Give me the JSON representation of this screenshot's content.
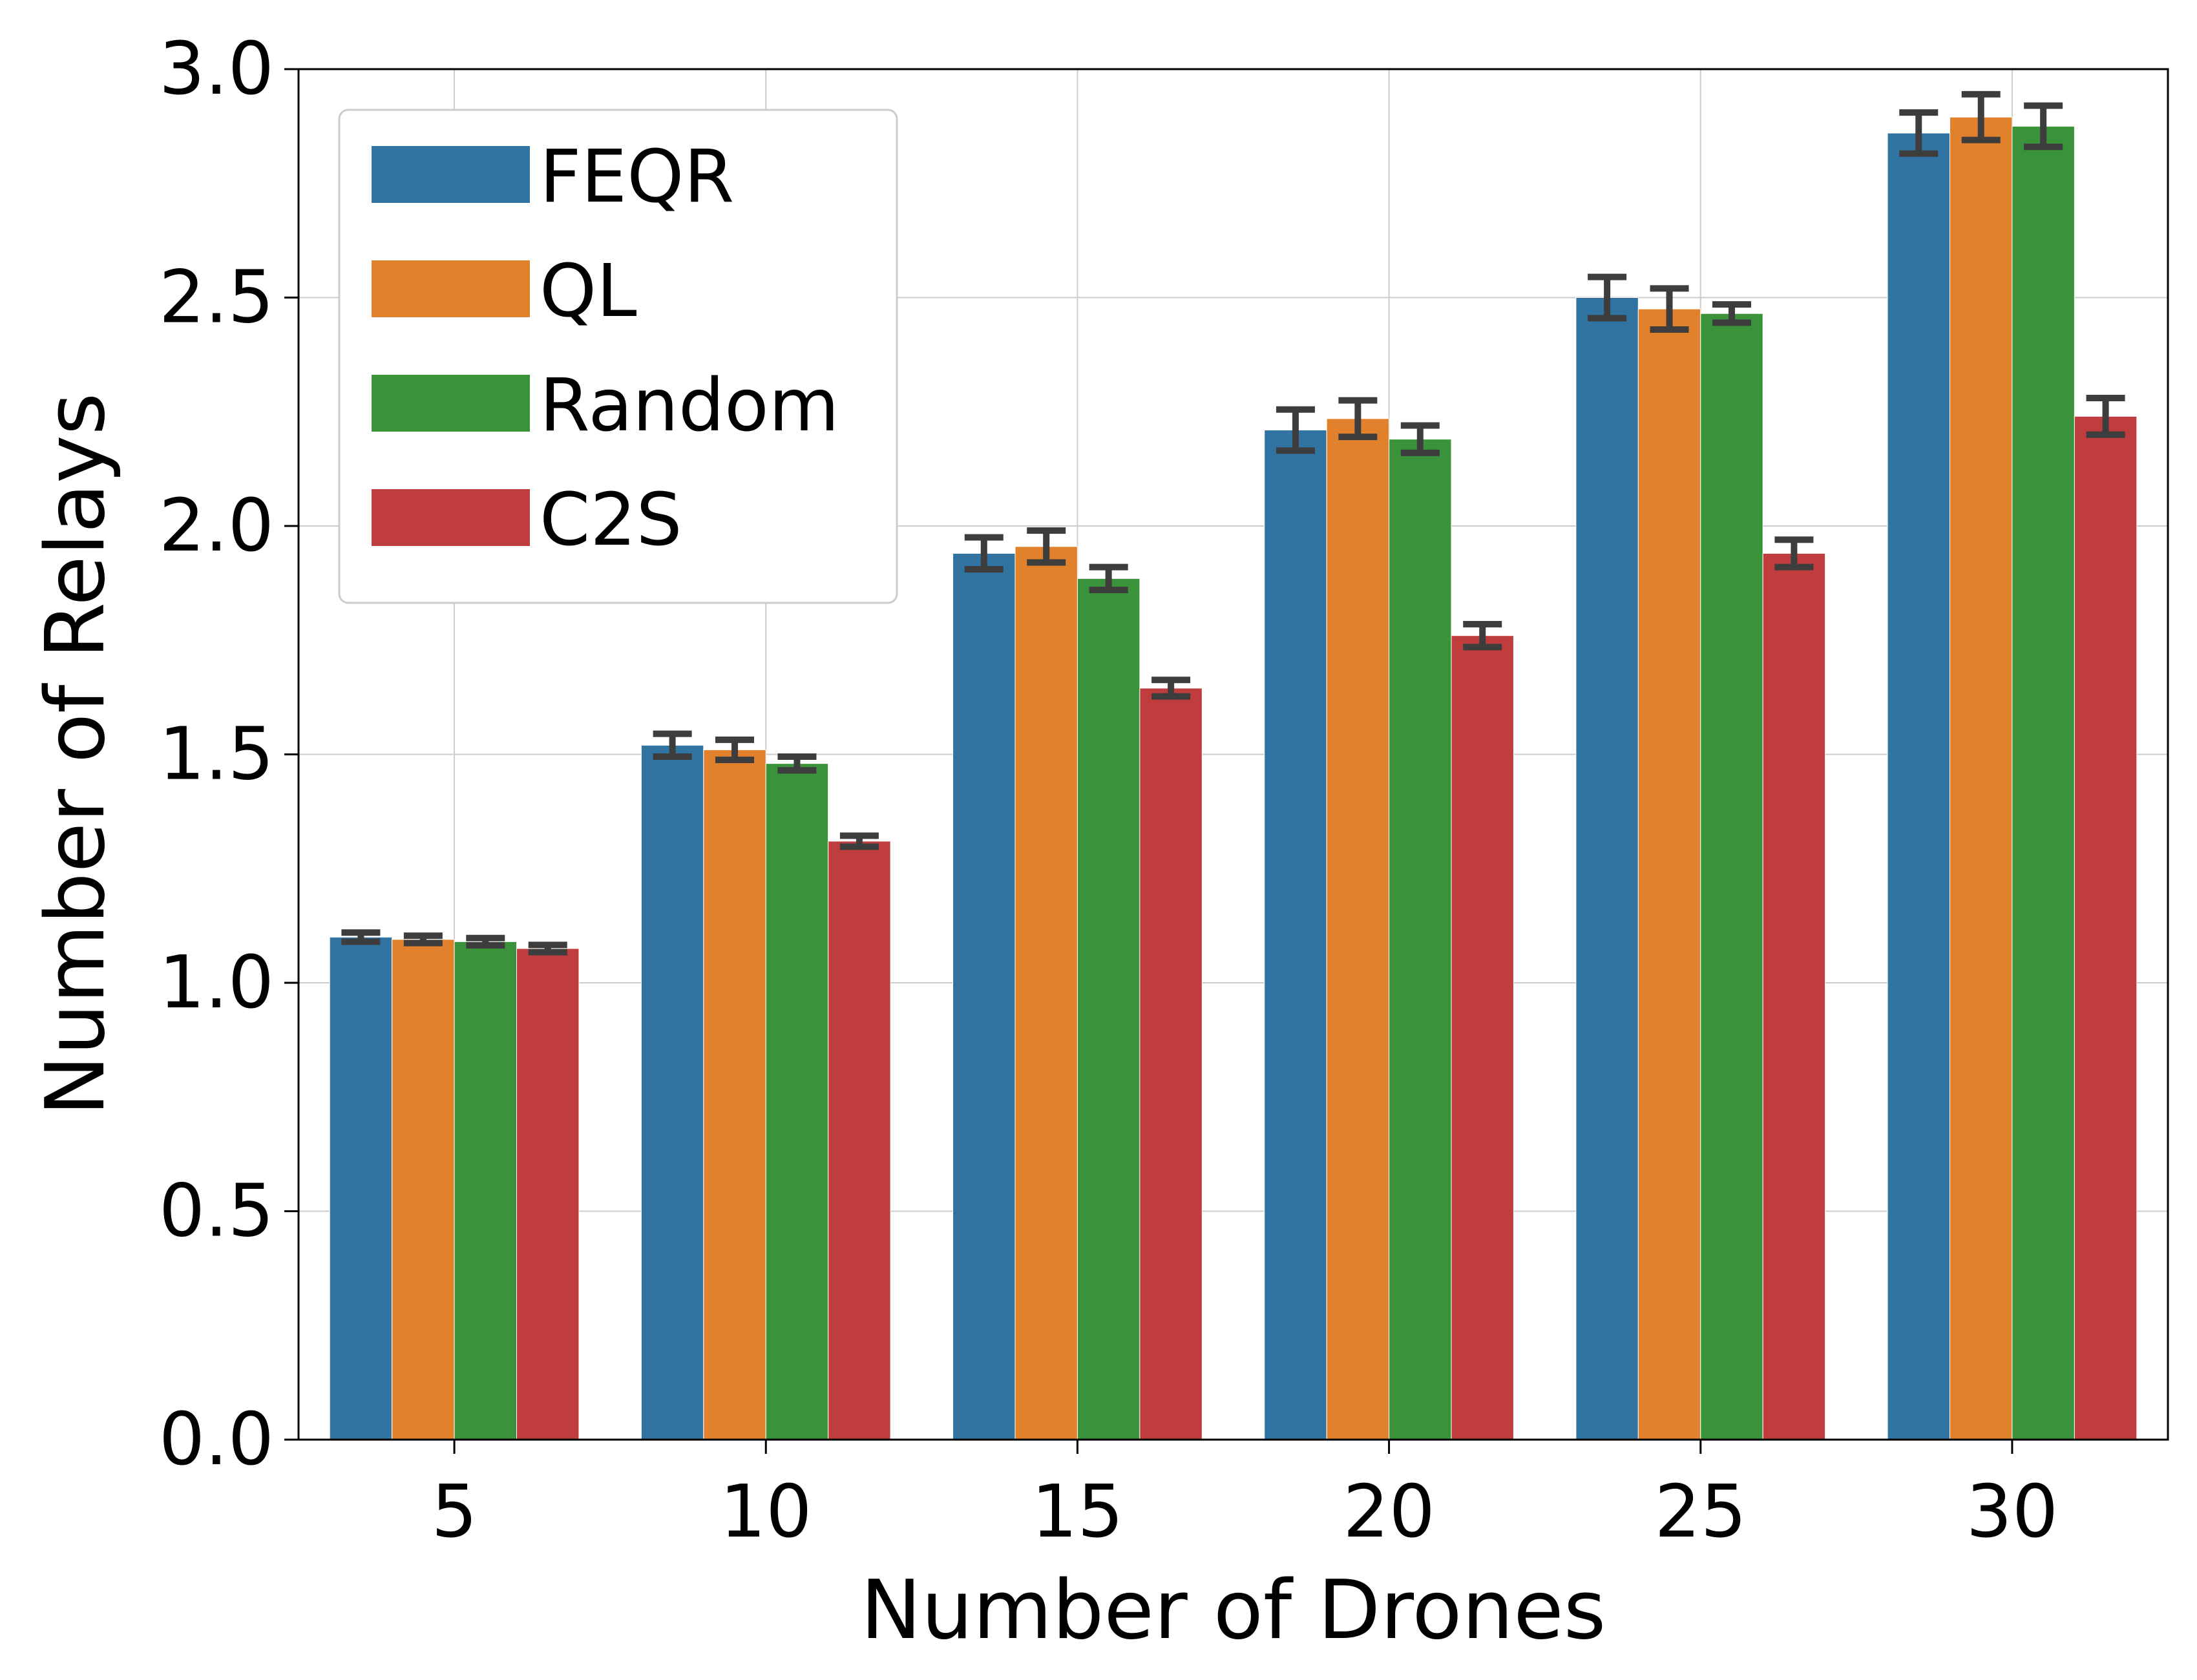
{
  "chart_data": {
    "type": "bar",
    "categories": [
      "5",
      "10",
      "15",
      "20",
      "25",
      "30"
    ],
    "series": [
      {
        "name": "FEQR",
        "color": "#3274a1",
        "values": [
          1.1,
          1.52,
          1.94,
          2.21,
          2.5,
          2.86
        ],
        "error": [
          0.01,
          0.025,
          0.035,
          0.045,
          0.045,
          0.045
        ]
      },
      {
        "name": "QL",
        "color": "#e1812c",
        "values": [
          1.095,
          1.51,
          1.955,
          2.235,
          2.475,
          2.895
        ],
        "error": [
          0.008,
          0.022,
          0.035,
          0.04,
          0.045,
          0.05
        ]
      },
      {
        "name": "Random",
        "color": "#3a923a",
        "values": [
          1.09,
          1.48,
          1.885,
          2.19,
          2.465,
          2.875
        ],
        "error": [
          0.008,
          0.015,
          0.025,
          0.03,
          0.02,
          0.045
        ]
      },
      {
        "name": "C2S",
        "color": "#c03d3e",
        "values": [
          1.075,
          1.31,
          1.645,
          1.76,
          1.94,
          2.24
        ],
        "error": [
          0.008,
          0.012,
          0.018,
          0.025,
          0.03,
          0.04
        ]
      }
    ],
    "xlabel": "Number of Drones",
    "ylabel": "Number of Relays",
    "ylim": [
      0,
      3.0
    ],
    "yticks": [
      "0.0",
      "0.5",
      "1.0",
      "1.5",
      "2.0",
      "2.5",
      "3.0"
    ],
    "grid": true,
    "legend_position": "top-left",
    "errorbar_color": "#3d3d3d"
  }
}
